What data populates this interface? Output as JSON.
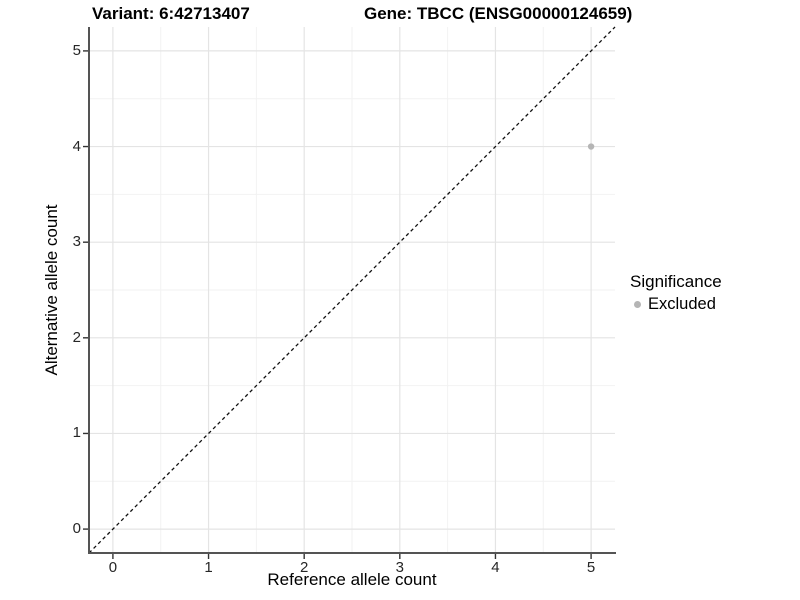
{
  "chart_data": {
    "type": "scatter",
    "title_left": "Variant: 6:42713407",
    "title_right": "Gene: TBCC (ENSG00000124659)",
    "xlabel": "Reference allele count",
    "ylabel": "Alternative allele count",
    "xlim": [
      -0.25,
      5.25
    ],
    "ylim": [
      -0.25,
      5.25
    ],
    "x_ticks": [
      0,
      1,
      2,
      3,
      4,
      5
    ],
    "y_ticks": [
      0,
      1,
      2,
      3,
      4,
      5
    ],
    "x_minor_ticks": [
      0.5,
      1.5,
      2.5,
      3.5,
      4.5
    ],
    "y_minor_ticks": [
      0.5,
      1.5,
      2.5,
      3.5,
      4.5
    ],
    "grid": true,
    "reference_line": {
      "type": "identity",
      "style": "dashed",
      "from": [
        -0.25,
        -0.25
      ],
      "to": [
        5.25,
        5.25
      ]
    },
    "series": [
      {
        "name": "Excluded",
        "points": [
          {
            "x": 5,
            "y": 4
          }
        ]
      }
    ],
    "legend": {
      "title": "Significance",
      "position": "right",
      "entries": [
        {
          "label": "Excluded",
          "color": "#b5b5b5"
        }
      ]
    },
    "colors": {
      "background": "#ffffff",
      "grid_major": "#e4e4e4",
      "grid_minor": "#f2f2f2",
      "axis_line": "#545454",
      "tick_mark": "#333333",
      "tick_label": "#262626",
      "point": "#b5b5b5",
      "reference_line": "#111111",
      "title_text": "#000000"
    }
  }
}
